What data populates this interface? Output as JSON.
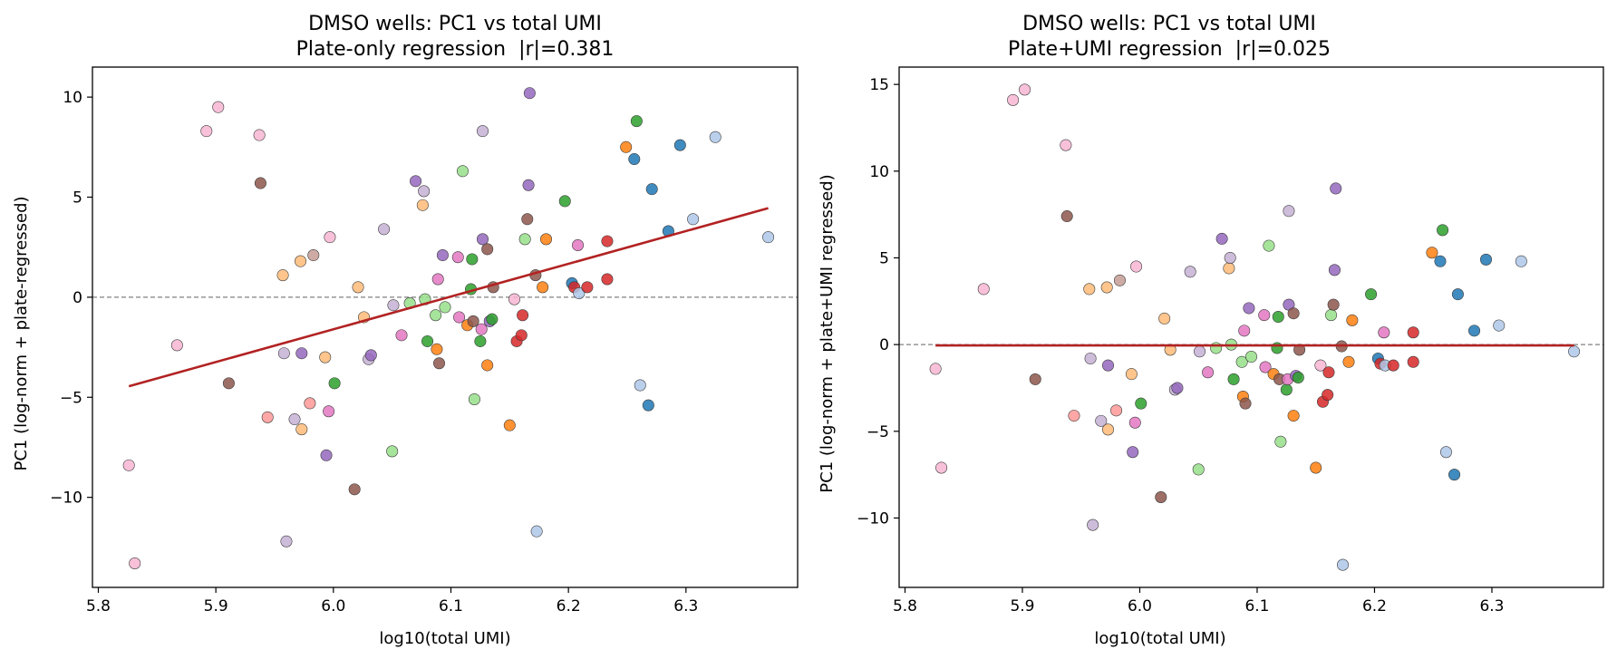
{
  "chart_data": [
    {
      "type": "scatter",
      "title": "DMSO wells: PC1 vs total UMI",
      "subtitle": "Plate-only regression  |r|=0.381",
      "xlabel": "log10(total UMI)",
      "ylabel": "PC1 (log-norm + plate-regressed)",
      "xlim": [
        5.795,
        6.395
      ],
      "ylim": [
        -14.5,
        11.5
      ],
      "xticks": [
        5.8,
        5.9,
        6.0,
        6.1,
        6.2,
        6.3
      ],
      "xtick_labels": [
        "5.8",
        "5.9",
        "6.0",
        "6.1",
        "6.2",
        "6.3"
      ],
      "yticks": [
        -10,
        -5,
        0,
        5,
        10
      ],
      "ytick_labels": [
        "−10",
        "−5",
        "0",
        "5",
        "10"
      ],
      "grid": false,
      "reference_line": {
        "y": 0,
        "style": "dashed",
        "color": "#808080"
      },
      "fit_line": {
        "x": [
          5.826,
          6.37
        ],
        "y": [
          -4.45,
          4.45
        ],
        "color": "#b22222"
      },
      "points": [
        {
          "x": 5.826,
          "y": -8.4,
          "color": "#f7b6d2"
        },
        {
          "x": 5.831,
          "y": -13.3,
          "color": "#f7b6d2"
        },
        {
          "x": 5.867,
          "y": -2.4,
          "color": "#f7b6d2"
        },
        {
          "x": 5.892,
          "y": 8.3,
          "color": "#f7b6d2"
        },
        {
          "x": 5.902,
          "y": 9.5,
          "color": "#f7b6d2"
        },
        {
          "x": 5.911,
          "y": -4.3,
          "color": "#8c564b"
        },
        {
          "x": 5.937,
          "y": 8.1,
          "color": "#f7b6d2"
        },
        {
          "x": 5.938,
          "y": 5.7,
          "color": "#8c564b"
        },
        {
          "x": 5.944,
          "y": -6.0,
          "color": "#ff9896"
        },
        {
          "x": 5.957,
          "y": 1.1,
          "color": "#ffbb78"
        },
        {
          "x": 5.958,
          "y": -2.8,
          "color": "#c5b0d5"
        },
        {
          "x": 5.96,
          "y": -12.2,
          "color": "#c5b0d5"
        },
        {
          "x": 5.967,
          "y": -6.1,
          "color": "#c5b0d5"
        },
        {
          "x": 5.972,
          "y": 1.8,
          "color": "#ffbb78"
        },
        {
          "x": 5.973,
          "y": -2.8,
          "color": "#9467bd"
        },
        {
          "x": 5.973,
          "y": -6.6,
          "color": "#ffbb78"
        },
        {
          "x": 5.98,
          "y": -5.3,
          "color": "#ff9896"
        },
        {
          "x": 5.983,
          "y": 2.1,
          "color": "#c49c94"
        },
        {
          "x": 5.993,
          "y": -3.0,
          "color": "#ffbb78"
        },
        {
          "x": 5.994,
          "y": -7.9,
          "color": "#9467bd"
        },
        {
          "x": 5.996,
          "y": -5.7,
          "color": "#e377c2"
        },
        {
          "x": 5.997,
          "y": 3.0,
          "color": "#f7b6d2"
        },
        {
          "x": 6.001,
          "y": -4.3,
          "color": "#2ca02c"
        },
        {
          "x": 6.018,
          "y": -9.6,
          "color": "#8c564b"
        },
        {
          "x": 6.021,
          "y": 0.5,
          "color": "#ffbb78"
        },
        {
          "x": 6.026,
          "y": -1.0,
          "color": "#ffbb78"
        },
        {
          "x": 6.03,
          "y": -3.1,
          "color": "#c5b0d5"
        },
        {
          "x": 6.032,
          "y": -2.9,
          "color": "#9467bd"
        },
        {
          "x": 6.043,
          "y": 3.4,
          "color": "#c5b0d5"
        },
        {
          "x": 6.05,
          "y": -7.7,
          "color": "#98df8a"
        },
        {
          "x": 6.051,
          "y": -0.4,
          "color": "#c5b0d5"
        },
        {
          "x": 6.058,
          "y": -1.9,
          "color": "#e377c2"
        },
        {
          "x": 6.065,
          "y": -0.3,
          "color": "#98df8a"
        },
        {
          "x": 6.07,
          "y": 5.8,
          "color": "#9467bd"
        },
        {
          "x": 6.076,
          "y": 4.6,
          "color": "#ffbb78"
        },
        {
          "x": 6.077,
          "y": 5.3,
          "color": "#c5b0d5"
        },
        {
          "x": 6.078,
          "y": -0.1,
          "color": "#98df8a"
        },
        {
          "x": 6.08,
          "y": -2.2,
          "color": "#2ca02c"
        },
        {
          "x": 6.087,
          "y": -0.9,
          "color": "#98df8a"
        },
        {
          "x": 6.088,
          "y": -2.6,
          "color": "#ff7f0e"
        },
        {
          "x": 6.089,
          "y": 0.9,
          "color": "#e377c2"
        },
        {
          "x": 6.09,
          "y": -3.3,
          "color": "#8c564b"
        },
        {
          "x": 6.093,
          "y": 2.1,
          "color": "#9467bd"
        },
        {
          "x": 6.095,
          "y": -0.5,
          "color": "#98df8a"
        },
        {
          "x": 6.106,
          "y": 2.0,
          "color": "#e377c2"
        },
        {
          "x": 6.107,
          "y": -1.0,
          "color": "#e377c2"
        },
        {
          "x": 6.11,
          "y": 6.3,
          "color": "#98df8a"
        },
        {
          "x": 6.114,
          "y": -1.4,
          "color": "#ff7f0e"
        },
        {
          "x": 6.117,
          "y": 0.4,
          "color": "#2ca02c"
        },
        {
          "x": 6.118,
          "y": 1.9,
          "color": "#2ca02c"
        },
        {
          "x": 6.119,
          "y": -1.2,
          "color": "#8c564b"
        },
        {
          "x": 6.12,
          "y": -5.1,
          "color": "#98df8a"
        },
        {
          "x": 6.125,
          "y": -2.2,
          "color": "#2ca02c"
        },
        {
          "x": 6.126,
          "y": -1.6,
          "color": "#e377c2"
        },
        {
          "x": 6.127,
          "y": 8.3,
          "color": "#c5b0d5"
        },
        {
          "x": 6.127,
          "y": 2.9,
          "color": "#9467bd"
        },
        {
          "x": 6.131,
          "y": 2.4,
          "color": "#8c564b"
        },
        {
          "x": 6.131,
          "y": -3.4,
          "color": "#ff7f0e"
        },
        {
          "x": 6.133,
          "y": -1.2,
          "color": "#9467bd"
        },
        {
          "x": 6.135,
          "y": -1.1,
          "color": "#2ca02c"
        },
        {
          "x": 6.136,
          "y": 0.5,
          "color": "#8c564b"
        },
        {
          "x": 6.15,
          "y": -6.4,
          "color": "#ff7f0e"
        },
        {
          "x": 6.154,
          "y": -0.1,
          "color": "#f7b6d2"
        },
        {
          "x": 6.156,
          "y": -2.2,
          "color": "#d62728"
        },
        {
          "x": 6.16,
          "y": -1.9,
          "color": "#d62728"
        },
        {
          "x": 6.161,
          "y": -0.9,
          "color": "#d62728"
        },
        {
          "x": 6.163,
          "y": 2.9,
          "color": "#98df8a"
        },
        {
          "x": 6.165,
          "y": 3.9,
          "color": "#8c564b"
        },
        {
          "x": 6.166,
          "y": 5.6,
          "color": "#9467bd"
        },
        {
          "x": 6.167,
          "y": 10.2,
          "color": "#9467bd"
        },
        {
          "x": 6.172,
          "y": 1.1,
          "color": "#8c564b"
        },
        {
          "x": 6.173,
          "y": -11.7,
          "color": "#aec7e8"
        },
        {
          "x": 6.178,
          "y": 0.5,
          "color": "#ff7f0e"
        },
        {
          "x": 6.181,
          "y": 2.9,
          "color": "#ff7f0e"
        },
        {
          "x": 6.197,
          "y": 4.8,
          "color": "#2ca02c"
        },
        {
          "x": 6.203,
          "y": 0.7,
          "color": "#1f77b4"
        },
        {
          "x": 6.205,
          "y": 0.5,
          "color": "#d62728"
        },
        {
          "x": 6.208,
          "y": 2.6,
          "color": "#e377c2"
        },
        {
          "x": 6.209,
          "y": 0.2,
          "color": "#aec7e8"
        },
        {
          "x": 6.216,
          "y": 0.5,
          "color": "#d62728"
        },
        {
          "x": 6.233,
          "y": 0.9,
          "color": "#d62728"
        },
        {
          "x": 6.233,
          "y": 2.8,
          "color": "#d62728"
        },
        {
          "x": 6.249,
          "y": 7.5,
          "color": "#ff7f0e"
        },
        {
          "x": 6.256,
          "y": 6.9,
          "color": "#1f77b4"
        },
        {
          "x": 6.258,
          "y": 8.8,
          "color": "#2ca02c"
        },
        {
          "x": 6.261,
          "y": -4.4,
          "color": "#aec7e8"
        },
        {
          "x": 6.268,
          "y": -5.4,
          "color": "#1f77b4"
        },
        {
          "x": 6.271,
          "y": 5.4,
          "color": "#1f77b4"
        },
        {
          "x": 6.285,
          "y": 3.3,
          "color": "#1f77b4"
        },
        {
          "x": 6.295,
          "y": 7.6,
          "color": "#1f77b4"
        },
        {
          "x": 6.306,
          "y": 3.9,
          "color": "#aec7e8"
        },
        {
          "x": 6.325,
          "y": 8.0,
          "color": "#aec7e8"
        },
        {
          "x": 6.37,
          "y": 3.0,
          "color": "#aec7e8"
        }
      ]
    },
    {
      "type": "scatter",
      "title": "DMSO wells: PC1 vs total UMI",
      "subtitle": "Plate+UMI regression  |r|=0.025",
      "xlabel": "log10(total UMI)",
      "ylabel": "PC1 (log-norm + plate+UMI regressed)",
      "xlim": [
        5.795,
        6.395
      ],
      "ylim": [
        -14.0,
        16.0
      ],
      "xticks": [
        5.8,
        5.9,
        6.0,
        6.1,
        6.2,
        6.3
      ],
      "xtick_labels": [
        "5.8",
        "5.9",
        "6.0",
        "6.1",
        "6.2",
        "6.3"
      ],
      "yticks": [
        -10,
        -5,
        0,
        5,
        10,
        15
      ],
      "ytick_labels": [
        "−10",
        "−5",
        "0",
        "5",
        "10",
        "15"
      ],
      "grid": false,
      "reference_line": {
        "y": 0,
        "style": "dashed",
        "color": "#808080"
      },
      "fit_line": {
        "x": [
          5.826,
          6.37
        ],
        "y": [
          -0.05,
          -0.05
        ],
        "color": "#b22222"
      },
      "points": [
        {
          "x": 5.826,
          "y": -1.4,
          "color": "#f7b6d2"
        },
        {
          "x": 5.831,
          "y": -7.1,
          "color": "#f7b6d2"
        },
        {
          "x": 5.867,
          "y": 3.2,
          "color": "#f7b6d2"
        },
        {
          "x": 5.892,
          "y": 14.1,
          "color": "#f7b6d2"
        },
        {
          "x": 5.902,
          "y": 14.7,
          "color": "#f7b6d2"
        },
        {
          "x": 5.911,
          "y": -2.0,
          "color": "#8c564b"
        },
        {
          "x": 5.937,
          "y": 11.5,
          "color": "#f7b6d2"
        },
        {
          "x": 5.938,
          "y": 7.4,
          "color": "#8c564b"
        },
        {
          "x": 5.944,
          "y": -4.1,
          "color": "#ff9896"
        },
        {
          "x": 5.957,
          "y": 3.2,
          "color": "#ffbb78"
        },
        {
          "x": 5.958,
          "y": -0.8,
          "color": "#c5b0d5"
        },
        {
          "x": 5.96,
          "y": -10.4,
          "color": "#c5b0d5"
        },
        {
          "x": 5.967,
          "y": -4.4,
          "color": "#c5b0d5"
        },
        {
          "x": 5.972,
          "y": 3.3,
          "color": "#ffbb78"
        },
        {
          "x": 5.973,
          "y": -1.2,
          "color": "#9467bd"
        },
        {
          "x": 5.973,
          "y": -4.9,
          "color": "#ffbb78"
        },
        {
          "x": 5.98,
          "y": -3.8,
          "color": "#ff9896"
        },
        {
          "x": 5.983,
          "y": 3.7,
          "color": "#c49c94"
        },
        {
          "x": 5.993,
          "y": -1.7,
          "color": "#ffbb78"
        },
        {
          "x": 5.994,
          "y": -6.2,
          "color": "#9467bd"
        },
        {
          "x": 5.996,
          "y": -4.5,
          "color": "#e377c2"
        },
        {
          "x": 5.997,
          "y": 4.5,
          "color": "#f7b6d2"
        },
        {
          "x": 6.001,
          "y": -3.4,
          "color": "#2ca02c"
        },
        {
          "x": 6.018,
          "y": -8.8,
          "color": "#8c564b"
        },
        {
          "x": 6.021,
          "y": 1.5,
          "color": "#ffbb78"
        },
        {
          "x": 6.026,
          "y": -0.3,
          "color": "#ffbb78"
        },
        {
          "x": 6.03,
          "y": -2.6,
          "color": "#c5b0d5"
        },
        {
          "x": 6.032,
          "y": -2.5,
          "color": "#9467bd"
        },
        {
          "x": 6.043,
          "y": 4.2,
          "color": "#c5b0d5"
        },
        {
          "x": 6.05,
          "y": -7.2,
          "color": "#98df8a"
        },
        {
          "x": 6.051,
          "y": -0.4,
          "color": "#c5b0d5"
        },
        {
          "x": 6.058,
          "y": -1.6,
          "color": "#e377c2"
        },
        {
          "x": 6.065,
          "y": -0.2,
          "color": "#98df8a"
        },
        {
          "x": 6.07,
          "y": 6.1,
          "color": "#9467bd"
        },
        {
          "x": 6.076,
          "y": 4.4,
          "color": "#ffbb78"
        },
        {
          "x": 6.077,
          "y": 5.0,
          "color": "#c5b0d5"
        },
        {
          "x": 6.078,
          "y": 0.0,
          "color": "#98df8a"
        },
        {
          "x": 6.08,
          "y": -2.0,
          "color": "#2ca02c"
        },
        {
          "x": 6.087,
          "y": -1.0,
          "color": "#98df8a"
        },
        {
          "x": 6.088,
          "y": -3.0,
          "color": "#ff7f0e"
        },
        {
          "x": 6.089,
          "y": 0.8,
          "color": "#e377c2"
        },
        {
          "x": 6.09,
          "y": -3.4,
          "color": "#8c564b"
        },
        {
          "x": 6.093,
          "y": 2.1,
          "color": "#9467bd"
        },
        {
          "x": 6.095,
          "y": -0.7,
          "color": "#98df8a"
        },
        {
          "x": 6.106,
          "y": 1.7,
          "color": "#e377c2"
        },
        {
          "x": 6.107,
          "y": -1.3,
          "color": "#e377c2"
        },
        {
          "x": 6.11,
          "y": 5.7,
          "color": "#98df8a"
        },
        {
          "x": 6.114,
          "y": -1.7,
          "color": "#ff7f0e"
        },
        {
          "x": 6.117,
          "y": -0.2,
          "color": "#2ca02c"
        },
        {
          "x": 6.118,
          "y": 1.6,
          "color": "#2ca02c"
        },
        {
          "x": 6.119,
          "y": -2.0,
          "color": "#8c564b"
        },
        {
          "x": 6.12,
          "y": -5.6,
          "color": "#98df8a"
        },
        {
          "x": 6.125,
          "y": -2.6,
          "color": "#2ca02c"
        },
        {
          "x": 6.126,
          "y": -2.0,
          "color": "#e377c2"
        },
        {
          "x": 6.127,
          "y": 7.7,
          "color": "#c5b0d5"
        },
        {
          "x": 6.127,
          "y": 2.3,
          "color": "#9467bd"
        },
        {
          "x": 6.131,
          "y": 1.8,
          "color": "#8c564b"
        },
        {
          "x": 6.131,
          "y": -4.1,
          "color": "#ff7f0e"
        },
        {
          "x": 6.133,
          "y": -1.8,
          "color": "#9467bd"
        },
        {
          "x": 6.135,
          "y": -1.9,
          "color": "#2ca02c"
        },
        {
          "x": 6.136,
          "y": -0.3,
          "color": "#8c564b"
        },
        {
          "x": 6.15,
          "y": -7.1,
          "color": "#ff7f0e"
        },
        {
          "x": 6.154,
          "y": -1.2,
          "color": "#f7b6d2"
        },
        {
          "x": 6.156,
          "y": -3.3,
          "color": "#d62728"
        },
        {
          "x": 6.16,
          "y": -2.9,
          "color": "#d62728"
        },
        {
          "x": 6.161,
          "y": -1.6,
          "color": "#d62728"
        },
        {
          "x": 6.163,
          "y": 1.7,
          "color": "#98df8a"
        },
        {
          "x": 6.165,
          "y": 2.3,
          "color": "#8c564b"
        },
        {
          "x": 6.166,
          "y": 4.3,
          "color": "#9467bd"
        },
        {
          "x": 6.167,
          "y": 9.0,
          "color": "#9467bd"
        },
        {
          "x": 6.172,
          "y": -0.1,
          "color": "#8c564b"
        },
        {
          "x": 6.173,
          "y": -12.7,
          "color": "#aec7e8"
        },
        {
          "x": 6.178,
          "y": -1.0,
          "color": "#ff7f0e"
        },
        {
          "x": 6.181,
          "y": 1.4,
          "color": "#ff7f0e"
        },
        {
          "x": 6.197,
          "y": 2.9,
          "color": "#2ca02c"
        },
        {
          "x": 6.203,
          "y": -0.8,
          "color": "#1f77b4"
        },
        {
          "x": 6.205,
          "y": -1.1,
          "color": "#d62728"
        },
        {
          "x": 6.208,
          "y": 0.7,
          "color": "#e377c2"
        },
        {
          "x": 6.209,
          "y": -1.2,
          "color": "#aec7e8"
        },
        {
          "x": 6.216,
          "y": -1.2,
          "color": "#d62728"
        },
        {
          "x": 6.233,
          "y": -1.0,
          "color": "#d62728"
        },
        {
          "x": 6.233,
          "y": 0.7,
          "color": "#d62728"
        },
        {
          "x": 6.249,
          "y": 5.3,
          "color": "#ff7f0e"
        },
        {
          "x": 6.256,
          "y": 4.8,
          "color": "#1f77b4"
        },
        {
          "x": 6.258,
          "y": 6.6,
          "color": "#2ca02c"
        },
        {
          "x": 6.261,
          "y": -6.2,
          "color": "#aec7e8"
        },
        {
          "x": 6.268,
          "y": -7.5,
          "color": "#1f77b4"
        },
        {
          "x": 6.271,
          "y": 2.9,
          "color": "#1f77b4"
        },
        {
          "x": 6.285,
          "y": 0.8,
          "color": "#1f77b4"
        },
        {
          "x": 6.295,
          "y": 4.9,
          "color": "#1f77b4"
        },
        {
          "x": 6.306,
          "y": 1.1,
          "color": "#aec7e8"
        },
        {
          "x": 6.325,
          "y": 4.8,
          "color": "#aec7e8"
        },
        {
          "x": 6.37,
          "y": -0.4,
          "color": "#aec7e8"
        }
      ]
    }
  ]
}
